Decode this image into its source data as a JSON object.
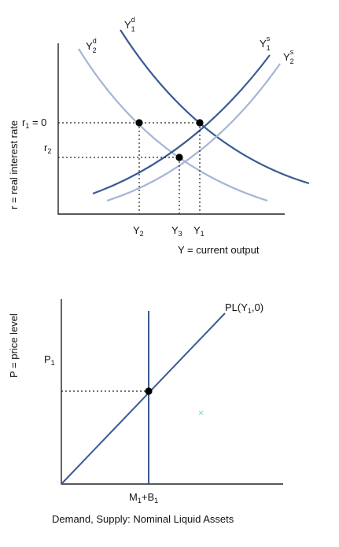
{
  "top_diagram": {
    "y_axis_label": "r = real interest rate",
    "x_axis_label": "Y = current output",
    "r_labels": {
      "r1": {
        "base": "r",
        "sub": "1",
        "suffix": " = 0"
      },
      "r2": {
        "base": "r",
        "sub": "2",
        "suffix": ""
      }
    },
    "y_ticks": [
      {
        "base": "Y",
        "sub": "2"
      },
      {
        "base": "Y",
        "sub": "3"
      },
      {
        "base": "Y",
        "sub": "1"
      }
    ],
    "curves": {
      "y1d": {
        "base": "Y",
        "sub": "1",
        "sup": "d",
        "color": "#3a5b94"
      },
      "y2d": {
        "base": "Y",
        "sub": "2",
        "sup": "d",
        "color": "#a6b5d6"
      },
      "y1s": {
        "base": "Y",
        "sub": "1",
        "sup": "s",
        "color": "#3a5b94"
      },
      "y2s": {
        "base": "Y",
        "sub": "2",
        "sup": "s",
        "color": "#a6b5d6"
      }
    }
  },
  "bottom_diagram": {
    "y_axis_label": "P = price level",
    "x_axis_label": "Demand, Supply: Nominal Liquid Assets",
    "p_label": {
      "base": "P",
      "sub": "1"
    },
    "supply_label": {
      "base": "M",
      "sub": "1",
      "mid": "+B",
      "sub2": "1"
    },
    "pl_label": {
      "pre": "PL(Y",
      "sub": "1",
      "post": ",0)"
    },
    "colors": {
      "line": "#3a5b94",
      "marker": "#8fe0c4"
    }
  }
}
